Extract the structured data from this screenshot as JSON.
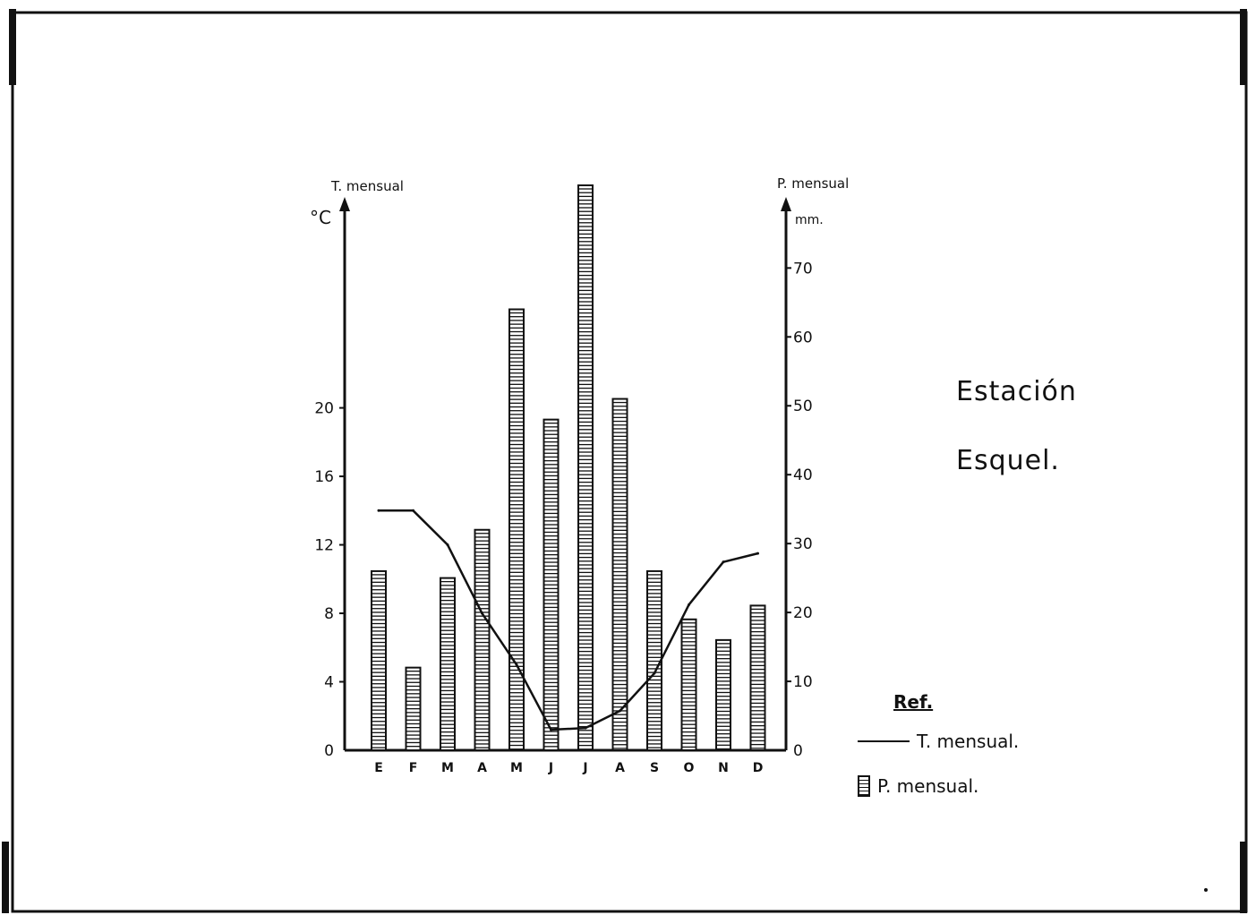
{
  "chart_data": {
    "type": "bar",
    "categories": [
      "E",
      "F",
      "M",
      "A",
      "M",
      "J",
      "J",
      "A",
      "S",
      "O",
      "N",
      "D"
    ],
    "series": [
      {
        "name": "P. mensual",
        "type": "bar",
        "axis": "right",
        "values": [
          26,
          12,
          25,
          32,
          64,
          48,
          82,
          51,
          26,
          19,
          16,
          21
        ]
      },
      {
        "name": "T. mensual",
        "type": "line",
        "axis": "left",
        "values": [
          14,
          14,
          12,
          8,
          5,
          1.2,
          1.3,
          2.3,
          4.5,
          8.5,
          11,
          11.5
        ]
      }
    ],
    "y_left": {
      "label": "T. mensual",
      "unit": "°C",
      "ticks": [
        0,
        4,
        8,
        12,
        16,
        20
      ],
      "ylim": [
        0,
        33
      ]
    },
    "y_right": {
      "label": "P. mensual",
      "unit": "mm.",
      "ticks": [
        0,
        10,
        20,
        30,
        40,
        50,
        60,
        70
      ],
      "ylim": [
        0,
        82
      ]
    },
    "grid": false,
    "legend": {
      "title": "Ref.",
      "position": "bottom-right",
      "entries": [
        {
          "label": "T. mensual.",
          "marker": "line"
        },
        {
          "label": "P. mensual.",
          "marker": "hatched-bar"
        }
      ]
    }
  },
  "station": {
    "line1": "Estación",
    "line2": "Esquel."
  },
  "colors": {
    "ink": "#111111",
    "paper": "#ffffff"
  }
}
